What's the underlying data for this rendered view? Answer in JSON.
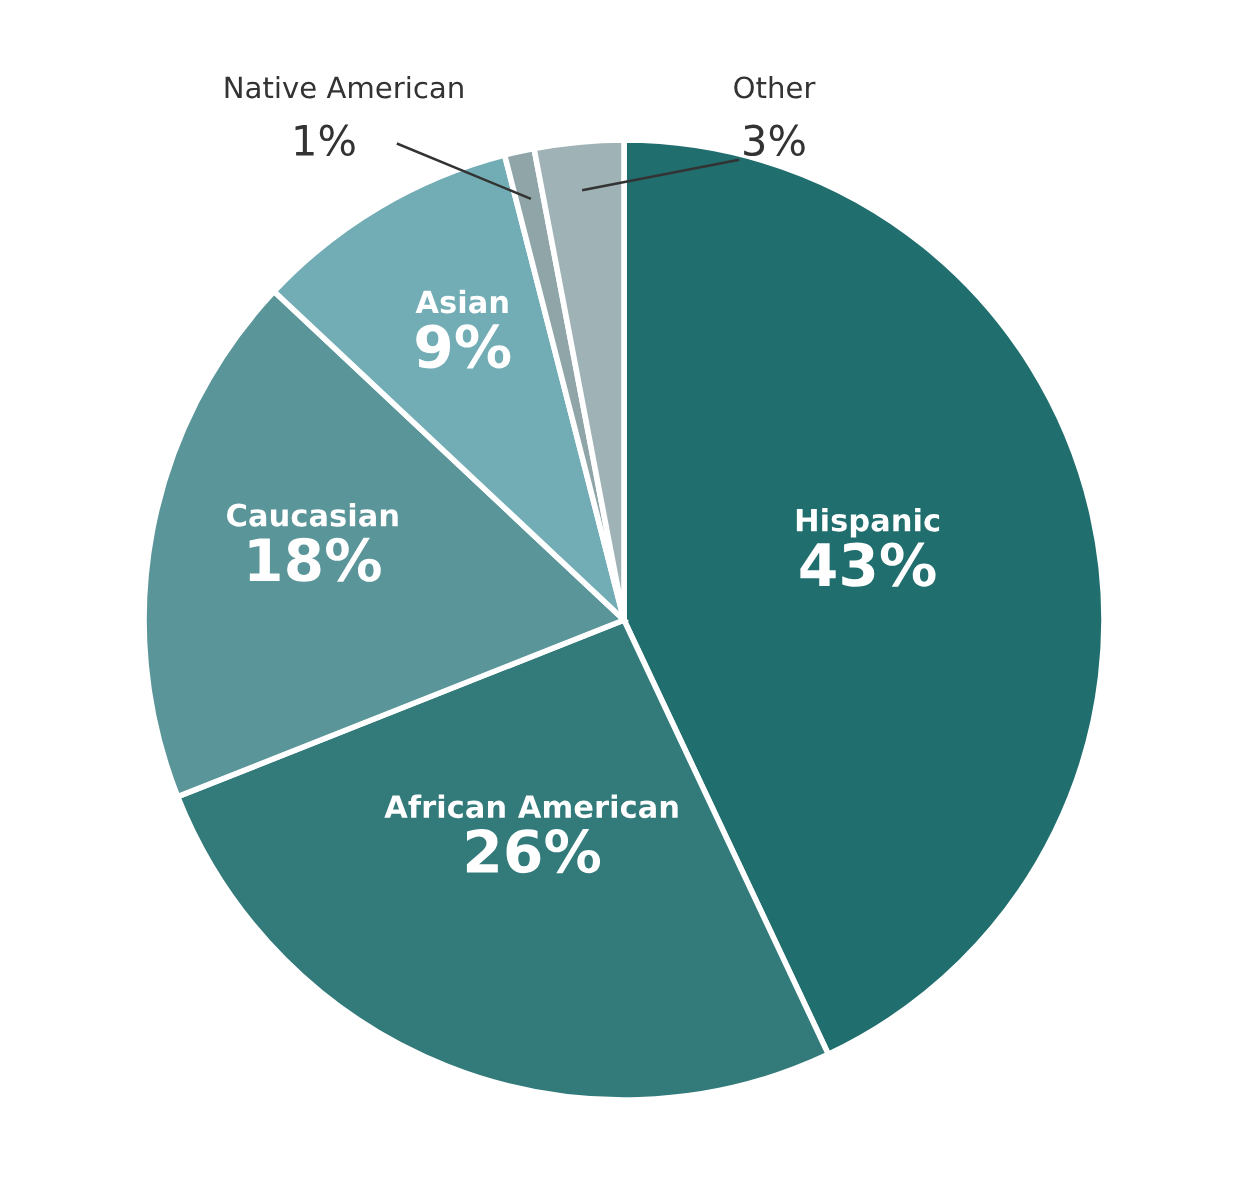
{
  "chart_data": {
    "type": "pie",
    "categories": [
      "Hispanic",
      "African American",
      "Caucasian",
      "Asian",
      "Native American",
      "Other"
    ],
    "values": [
      43,
      26,
      18,
      9,
      1,
      3
    ],
    "value_labels": [
      "43%",
      "26%",
      "18%",
      "9%",
      "1%",
      "3%"
    ],
    "colors": [
      "#216e6e",
      "#337b7b",
      "#5a9599",
      "#72adb5",
      "#8fa5a8",
      "#9fb3b6"
    ],
    "legend": false
  }
}
